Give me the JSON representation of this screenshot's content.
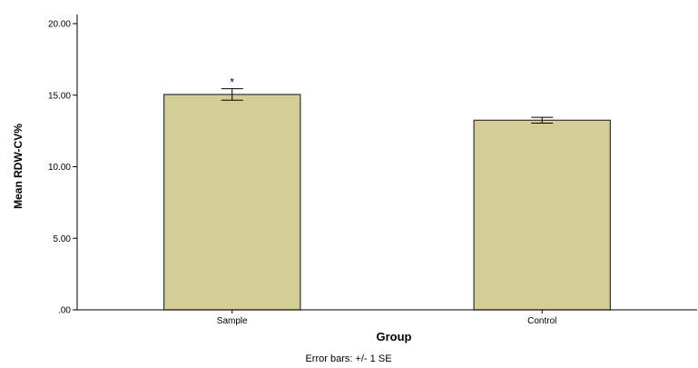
{
  "chart_data": {
    "type": "bar",
    "categories": [
      "Sample",
      "Control"
    ],
    "values": [
      15.05,
      13.25
    ],
    "error_bars": [
      {
        "lower": 14.65,
        "upper": 15.45
      },
      {
        "lower": 13.05,
        "upper": 13.45
      }
    ],
    "annotations": [
      "*",
      ""
    ],
    "xlabel": "Group",
    "ylabel": "Mean RDW-CV%",
    "ylim": [
      0,
      20
    ],
    "yticks": [
      0,
      5,
      10,
      15,
      20
    ],
    "ytick_labels": [
      ".00",
      "5.00",
      "10.00",
      "15.00",
      "20.00"
    ],
    "footnote": "Error bars: +/- 1 SE",
    "grid": false,
    "colors": {
      "bar_fill": "#d3cd96",
      "bar_stroke": "#333333",
      "axis": "#000000"
    }
  }
}
